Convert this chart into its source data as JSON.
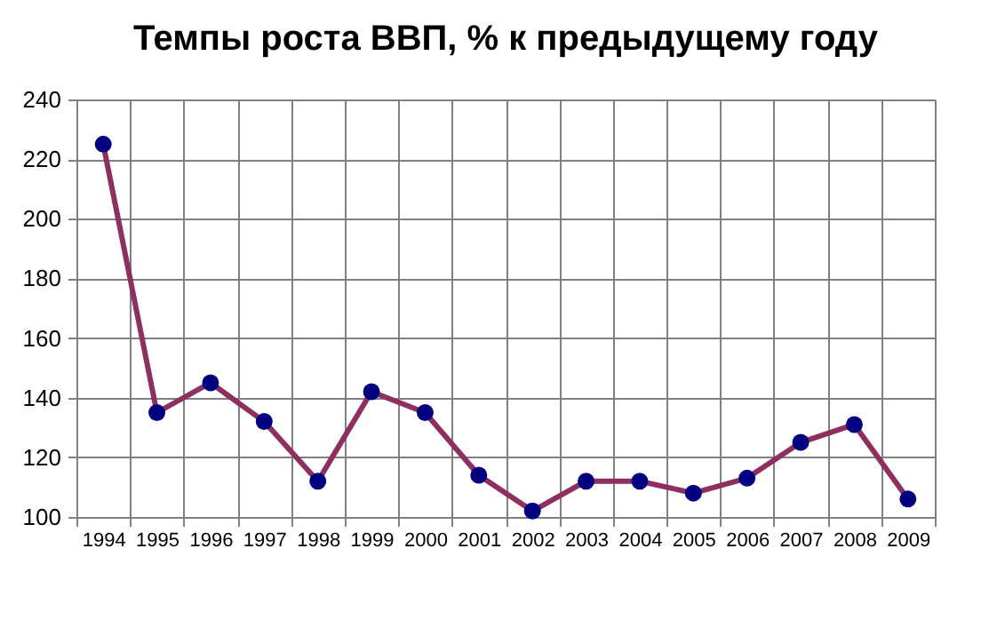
{
  "chart_data": {
    "type": "line",
    "title": "Темпы роста ВВП, % к предыдущему году",
    "categories": [
      "1994",
      "1995",
      "1996",
      "1997",
      "1998",
      "1999",
      "2000",
      "2001",
      "2002",
      "2003",
      "2004",
      "2005",
      "2006",
      "2007",
      "2008",
      "2009"
    ],
    "series": [
      {
        "color": "#8e2f60",
        "colors": [
          "#000080",
          "#000080",
          "#000080",
          "#000080",
          "#000080",
          "#000080",
          "#000080",
          "#000080",
          "#000080",
          "#000080",
          "#000080",
          "#000080",
          "#000080",
          "#000080",
          "#000080",
          "#000080"
        ],
        "values": [
          225,
          135,
          145,
          132,
          112,
          142,
          135,
          114,
          102,
          112,
          112,
          108,
          113,
          125,
          131,
          106
        ]
      }
    ],
    "ylim": [
      100,
      240
    ],
    "yticks": [
      100,
      120,
      140,
      160,
      180,
      200,
      220,
      240
    ],
    "grid": true,
    "marker": "circle",
    "line_style": "solid"
  }
}
